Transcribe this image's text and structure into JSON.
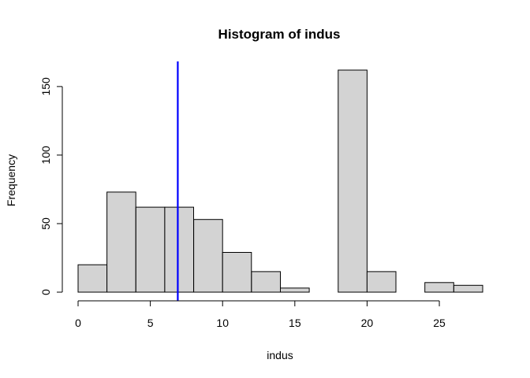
{
  "chart_data": {
    "type": "bar",
    "subtype": "histogram",
    "title": "Histogram of indus",
    "xlabel": "indus",
    "ylabel": "Frequency",
    "bins": [
      {
        "start": 0,
        "end": 2,
        "count": 20
      },
      {
        "start": 2,
        "end": 4,
        "count": 73
      },
      {
        "start": 4,
        "end": 6,
        "count": 62
      },
      {
        "start": 6,
        "end": 8,
        "count": 62
      },
      {
        "start": 8,
        "end": 10,
        "count": 53
      },
      {
        "start": 10,
        "end": 12,
        "count": 29
      },
      {
        "start": 12,
        "end": 14,
        "count": 15
      },
      {
        "start": 14,
        "end": 16,
        "count": 3
      },
      {
        "start": 16,
        "end": 18,
        "count": 0
      },
      {
        "start": 18,
        "end": 20,
        "count": 162
      },
      {
        "start": 20,
        "end": 22,
        "count": 15
      },
      {
        "start": 22,
        "end": 24,
        "count": 0
      },
      {
        "start": 24,
        "end": 26,
        "count": 7
      },
      {
        "start": 26,
        "end": 28,
        "count": 5
      }
    ],
    "xlim": [
      0,
      28
    ],
    "ylim": [
      0,
      162
    ],
    "x_ticks": [
      0,
      5,
      10,
      15,
      20,
      25
    ],
    "y_ticks": [
      0,
      50,
      100,
      150
    ],
    "reference_line": {
      "x": 6.9,
      "color": "#0000ff",
      "orientation": "vertical"
    },
    "bar_fill": "#d3d3d3",
    "bar_stroke": "#000000",
    "grid": false,
    "legend": "none"
  }
}
